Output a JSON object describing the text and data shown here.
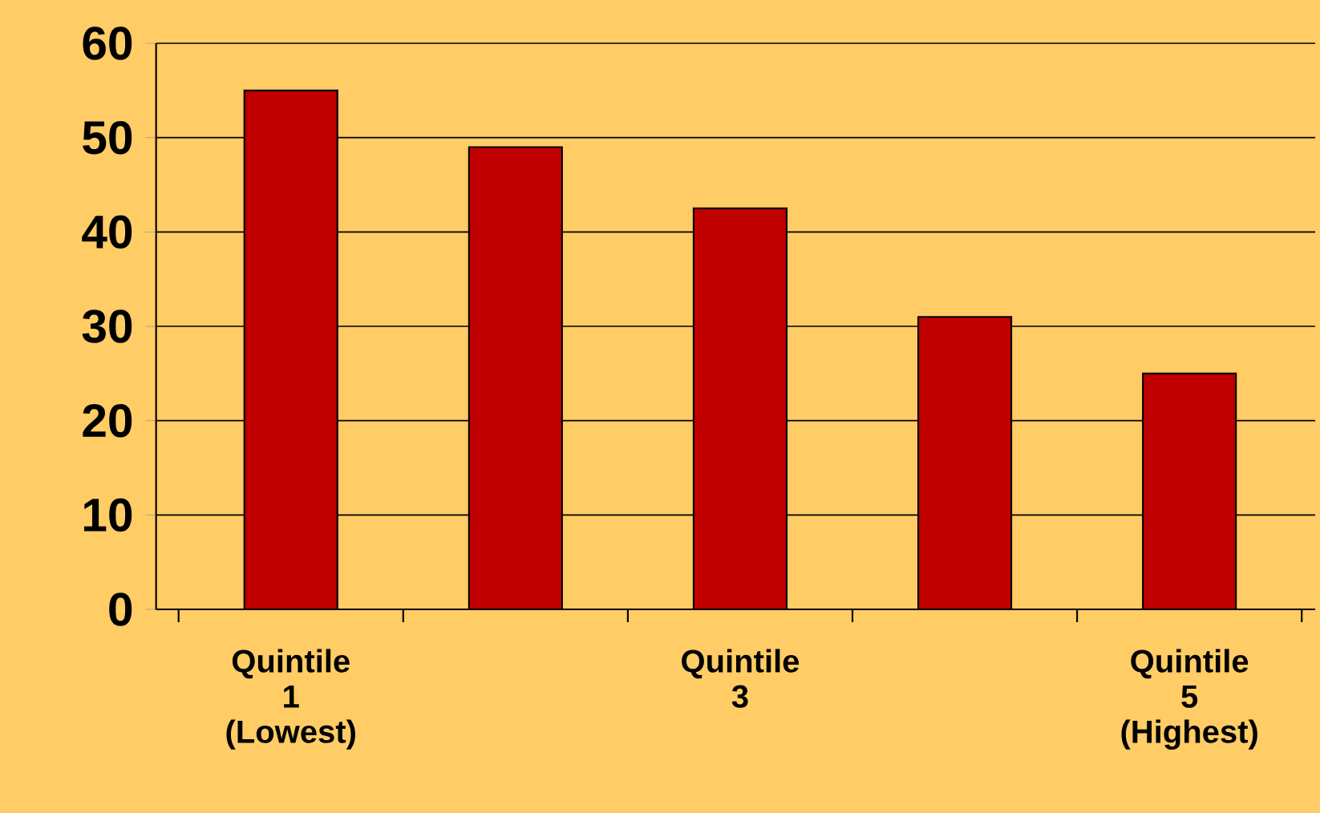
{
  "chart_data": {
    "type": "bar",
    "categories": [
      "Quintile 1 (Lowest)",
      null,
      "Quintile 3",
      null,
      "Quintile 5 (Highest)"
    ],
    "values": [
      55,
      49,
      42.5,
      31,
      25
    ],
    "color": "#c00000",
    "ylim": [
      0,
      60
    ],
    "yticks": [
      0,
      10,
      20,
      30,
      40,
      50,
      60
    ],
    "grid": "y"
  }
}
